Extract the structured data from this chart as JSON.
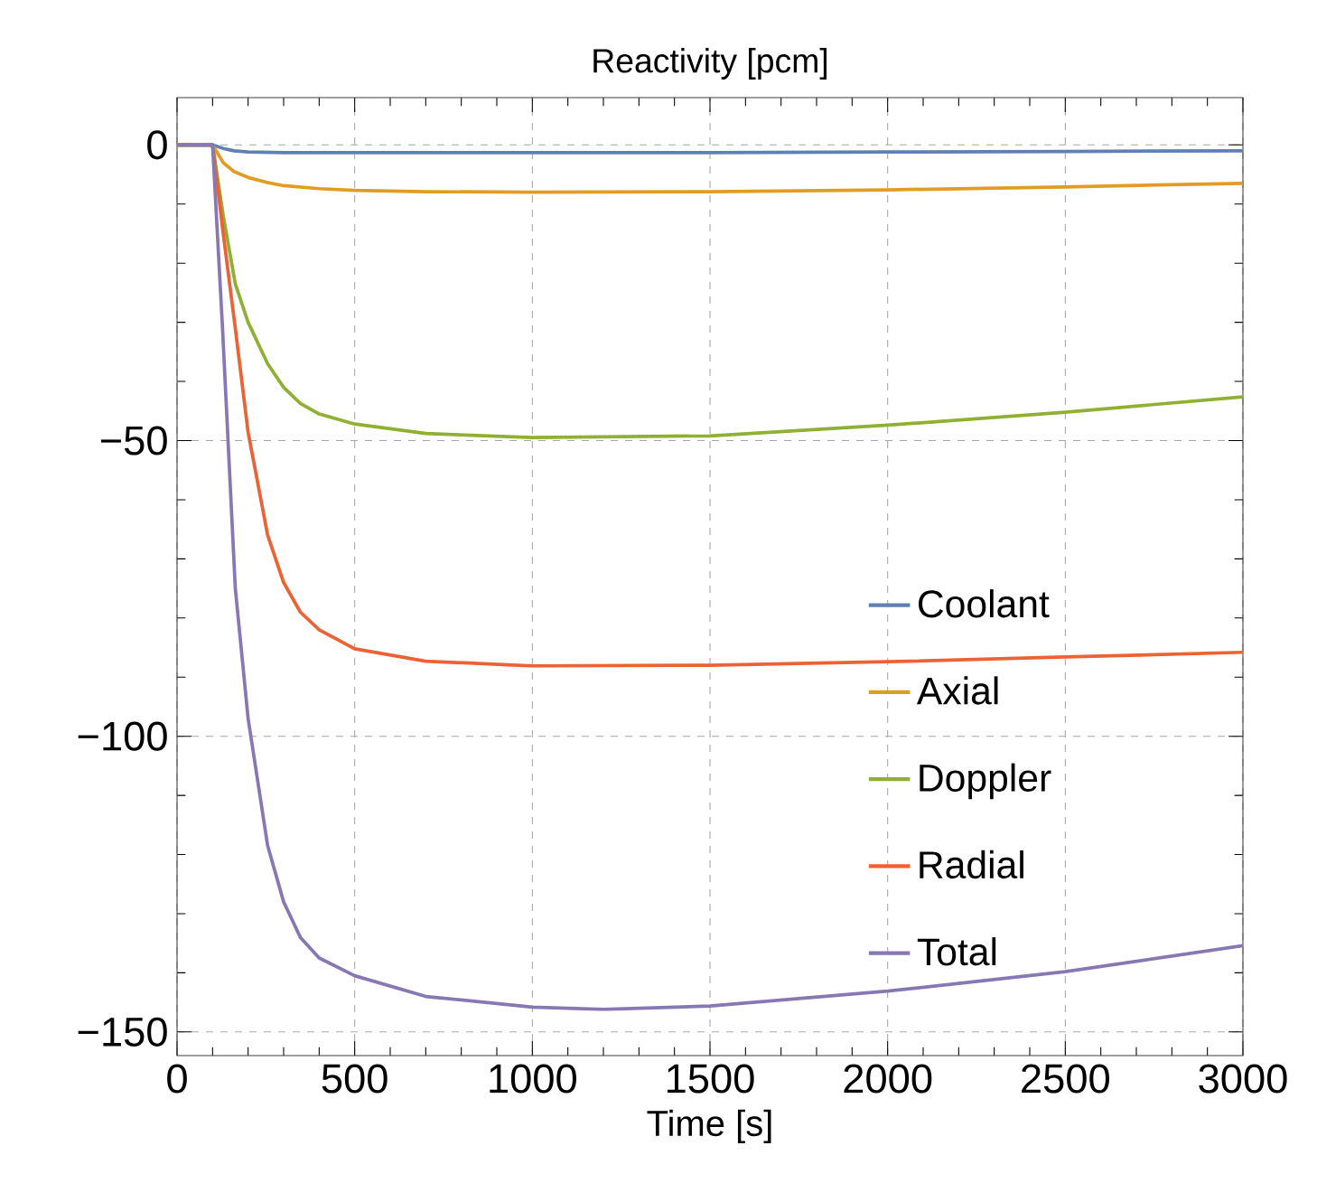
{
  "chart_data": {
    "type": "line",
    "title": "Reactivity [pcm]",
    "xlabel": "Time [s]",
    "xlim": [
      0,
      3000
    ],
    "ylim": [
      -154,
      8
    ],
    "xticks": [
      0,
      500,
      1000,
      1500,
      2000,
      2500,
      3000
    ],
    "yticks": [
      {
        "value": 0,
        "label": "0"
      },
      {
        "value": -50,
        "label": "−50"
      },
      {
        "value": -100,
        "label": "−100"
      },
      {
        "value": -150,
        "label": "−150"
      }
    ],
    "grid": true,
    "legend": "right",
    "marker": "none",
    "line_style": "solid",
    "series": [
      {
        "name": "Coolant",
        "color": "#5e81b5",
        "x": [
          0,
          100,
          130,
          160,
          200,
          300,
          500,
          1000,
          1500,
          2000,
          2500,
          3000
        ],
        "values": [
          0,
          0,
          -0.6,
          -1,
          -1.2,
          -1.3,
          -1.3,
          -1.3,
          -1.3,
          -1.2,
          -1.1,
          -1
        ]
      },
      {
        "name": "Axial",
        "color": "#e19c24",
        "x": [
          0,
          100,
          130,
          160,
          200,
          250,
          300,
          400,
          500,
          700,
          1000,
          1500,
          2000,
          2500,
          3000
        ],
        "values": [
          0,
          0,
          -3,
          -4.5,
          -5.5,
          -6.3,
          -6.9,
          -7.4,
          -7.7,
          -7.9,
          -8,
          -7.9,
          -7.6,
          -7.1,
          -6.5
        ]
      },
      {
        "name": "Doppler",
        "color": "#8fb032",
        "x": [
          0,
          100,
          130,
          164,
          200,
          255,
          300,
          347,
          400,
          500,
          700,
          1000,
          1500,
          2000,
          2500,
          3000
        ],
        "values": [
          0,
          0,
          -12,
          -23.5,
          -30,
          -37,
          -41,
          -43.7,
          -45.5,
          -47.2,
          -48.8,
          -49.5,
          -49.2,
          -47.4,
          -45.2,
          -42.6
        ]
      },
      {
        "name": "Radial",
        "color": "#eb6235",
        "x": [
          0,
          100,
          130,
          164,
          200,
          255,
          300,
          347,
          400,
          500,
          700,
          1000,
          1500,
          2000,
          2500,
          3000
        ],
        "values": [
          0,
          0,
          -15,
          -31,
          -48.6,
          -66,
          -74,
          -79,
          -82,
          -85.2,
          -87.3,
          -88.1,
          -88,
          -87.4,
          -86.6,
          -85.8
        ]
      },
      {
        "name": "Total",
        "color": "#8778b3",
        "x": [
          0,
          100,
          128,
          164,
          200,
          255,
          300,
          347,
          400,
          500,
          700,
          1000,
          1200,
          1500,
          2000,
          2500,
          3000
        ],
        "values": [
          0,
          0,
          -31,
          -75,
          -97,
          -118.5,
          -128,
          -134,
          -137.5,
          -140.5,
          -144,
          -145.8,
          -146.2,
          -145.6,
          -143.1,
          -139.8,
          -135.4
        ]
      }
    ]
  }
}
